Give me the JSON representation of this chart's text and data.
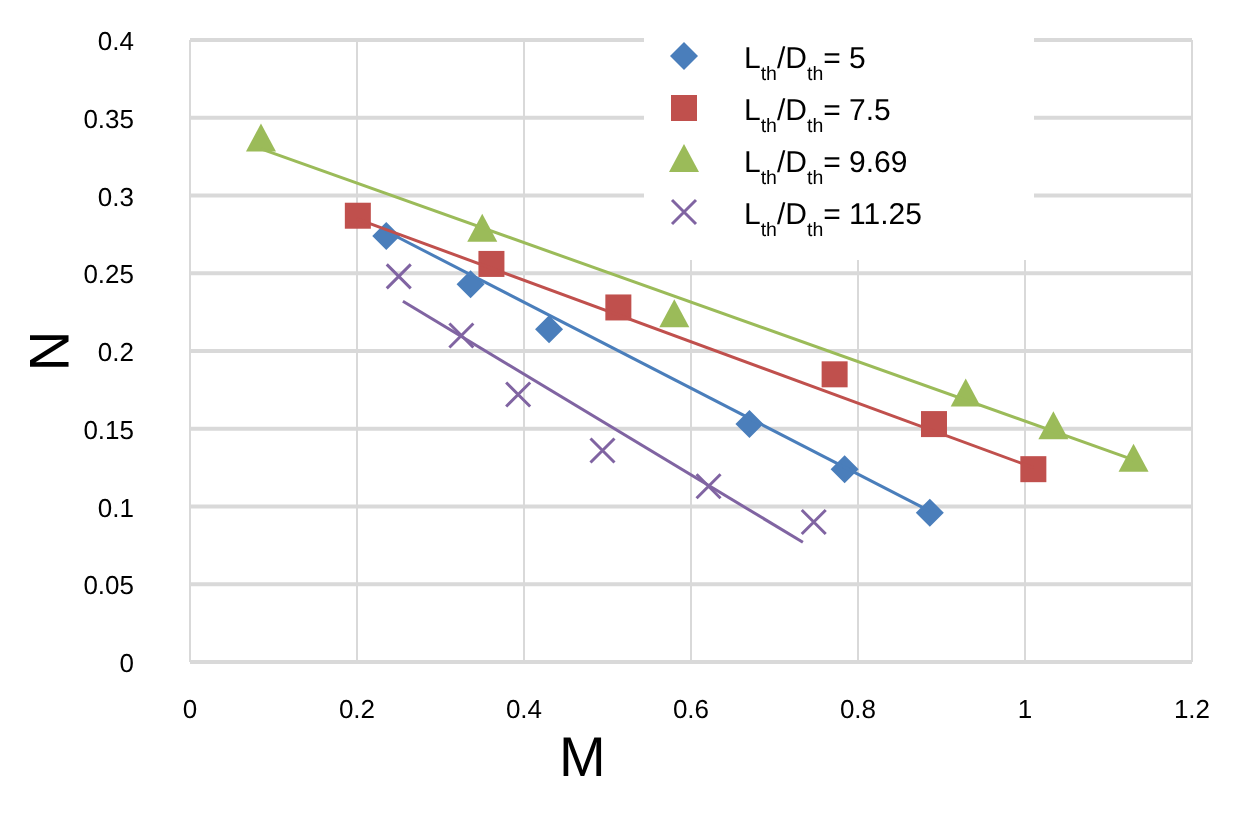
{
  "chart_data": {
    "type": "scatter",
    "xlabel": "M",
    "ylabel": "N",
    "xlim": [
      0,
      1.2
    ],
    "ylim": [
      0,
      0.4
    ],
    "xticks": [
      0,
      0.2,
      0.4,
      0.6,
      0.8,
      1,
      1.2
    ],
    "yticks": [
      0,
      0.05,
      0.1,
      0.15,
      0.2,
      0.25,
      0.3,
      0.35,
      0.4
    ],
    "grid": true,
    "legend": "top right",
    "series": [
      {
        "name": "L$_{th}$/D$_{th}$= 5",
        "color": "#4a7ebb",
        "marker": "diamond",
        "x": [
          0.235,
          0.336,
          0.43,
          0.67,
          0.784,
          0.886
        ],
        "values": [
          0.274,
          0.243,
          0.214,
          0.153,
          0.124,
          0.096
        ]
      },
      {
        "name": "L$_{th}$/D$_{th}$= 7.5",
        "color": "#c0504d",
        "marker": "square",
        "x": [
          0.201,
          0.361,
          0.513,
          0.772,
          0.891,
          1.01
        ],
        "values": [
          0.287,
          0.256,
          0.228,
          0.185,
          0.153,
          0.124
        ]
      },
      {
        "name": "L$_{th}$/D$_{th}$= 9.69",
        "color": "#9bbb59",
        "marker": "triangle",
        "x": [
          0.085,
          0.35,
          0.58,
          0.929,
          1.034,
          1.13
        ],
        "values": [
          0.336,
          0.278,
          0.223,
          0.172,
          0.151,
          0.13
        ]
      },
      {
        "name": "L$_{th}$/D$_{th}$= 11.25",
        "color": "#8064a2",
        "marker": "cross",
        "x": [
          0.25,
          0.325,
          0.393,
          0.494,
          0.621,
          0.747
        ],
        "values": [
          0.248,
          0.21,
          0.172,
          0.136,
          0.113,
          0.09
        ]
      },
      {
        "type": "line",
        "color": "#4a7ebb",
        "marker": "none",
        "x": [
          0.235,
          0.886
        ],
        "values": [
          0.277,
          0.097
        ]
      },
      {
        "type": "line",
        "color": "#c0504d",
        "marker": "none",
        "x": [
          0.2,
          1.01
        ],
        "values": [
          0.285,
          0.125
        ]
      },
      {
        "type": "line",
        "color": "#9bbb59",
        "marker": "none",
        "x": [
          0.085,
          1.13
        ],
        "values": [
          0.33,
          0.13
        ]
      },
      {
        "type": "line",
        "color": "#8064a2",
        "marker": "none",
        "x": [
          0.255,
          0.734
        ],
        "values": [
          0.232,
          0.077
        ]
      }
    ]
  }
}
